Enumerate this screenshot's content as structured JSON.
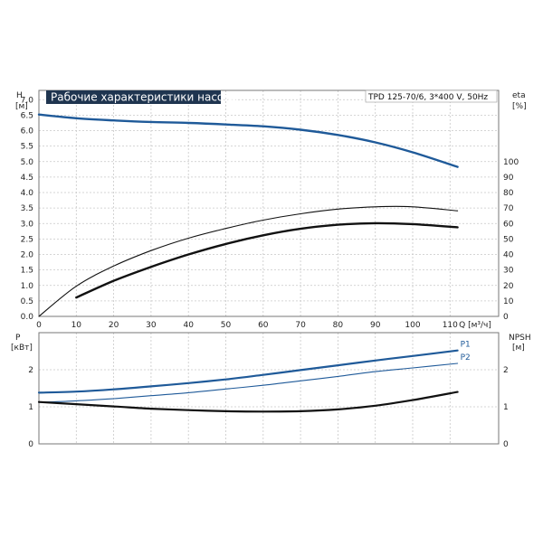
{
  "chart_data": [
    {
      "type": "line",
      "title": "Рабочие характеристики насоса",
      "model": "TPD 125-70/6, 3*400 V, 50Hz",
      "xlabel": "Q [м³/ч]",
      "x_ticks": [
        0,
        10,
        20,
        30,
        40,
        50,
        60,
        70,
        80,
        90,
        100,
        110
      ],
      "xlim": [
        0,
        123
      ],
      "ylabel_left": [
        "H",
        "[м]"
      ],
      "ylim_left": [
        0,
        7.3
      ],
      "yticks_left": [
        "0.0",
        "0.5",
        "1.0",
        "1.5",
        "2.0",
        "2.5",
        "3.0",
        "3.5",
        "4.0",
        "4.5",
        "5.0",
        "5.5",
        "6.0",
        "6.5",
        "7.0"
      ],
      "ylabel_right": [
        "eta",
        "[%]"
      ],
      "ylim_right": [
        0,
        146
      ],
      "yticks_right": [
        0,
        10,
        20,
        30,
        40,
        50,
        60,
        70,
        80,
        90,
        100
      ],
      "grid": true,
      "series": [
        {
          "axis": "left",
          "color": "#1f5a99",
          "width": 2.4,
          "x": [
            0,
            10,
            20,
            30,
            40,
            50,
            60,
            70,
            80,
            90,
            100,
            112
          ],
          "y": [
            6.52,
            6.4,
            6.33,
            6.28,
            6.25,
            6.2,
            6.14,
            6.03,
            5.86,
            5.62,
            5.3,
            4.83
          ]
        },
        {
          "axis": "right",
          "color": "#111111",
          "width": 1.1,
          "x": [
            0,
            10,
            20,
            30,
            40,
            50,
            60,
            70,
            80,
            90,
            100,
            112
          ],
          "y": [
            0,
            19.5,
            32.5,
            42.5,
            50.5,
            56.8,
            62.2,
            66.3,
            69.3,
            70.8,
            70.8,
            68.2
          ]
        },
        {
          "axis": "right",
          "color": "#111111",
          "width": 2.4,
          "x": [
            10,
            20,
            30,
            40,
            50,
            60,
            70,
            80,
            90,
            100,
            112
          ],
          "y": [
            12.2,
            23.0,
            32.0,
            40.0,
            46.8,
            52.4,
            56.6,
            59.2,
            60.2,
            59.6,
            57.6
          ]
        }
      ]
    },
    {
      "type": "line",
      "xlim": [
        0,
        123
      ],
      "ylabel_left": [
        "P",
        "[кВт]"
      ],
      "ylim_left": [
        0,
        3.0
      ],
      "yticks_left": [
        0,
        1,
        2
      ],
      "ylabel_right": [
        "NPSH",
        "[м]"
      ],
      "ylim_right": [
        0,
        3.0
      ],
      "yticks_right": [
        0,
        1,
        2
      ],
      "grid": true,
      "series": [
        {
          "name": "P1",
          "axis": "left",
          "color": "#1f5a99",
          "width": 2.2,
          "x": [
            0,
            10,
            20,
            30,
            40,
            50,
            60,
            70,
            80,
            90,
            100,
            112
          ],
          "y": [
            1.38,
            1.41,
            1.47,
            1.55,
            1.64,
            1.74,
            1.86,
            1.99,
            2.12,
            2.25,
            2.37,
            2.52
          ]
        },
        {
          "name": "P2",
          "axis": "left",
          "color": "#1f5a99",
          "width": 1.1,
          "x": [
            0,
            10,
            20,
            30,
            40,
            50,
            60,
            70,
            80,
            90,
            100,
            112
          ],
          "y": [
            1.12,
            1.16,
            1.22,
            1.3,
            1.38,
            1.48,
            1.58,
            1.7,
            1.82,
            1.95,
            2.05,
            2.17
          ]
        },
        {
          "axis": "right",
          "color": "#111111",
          "width": 2.2,
          "x": [
            0,
            10,
            20,
            30,
            40,
            50,
            60,
            70,
            80,
            90,
            100,
            112
          ],
          "y": [
            1.13,
            1.07,
            1.01,
            0.95,
            0.91,
            0.88,
            0.87,
            0.88,
            0.93,
            1.03,
            1.18,
            1.4
          ]
        }
      ]
    }
  ]
}
